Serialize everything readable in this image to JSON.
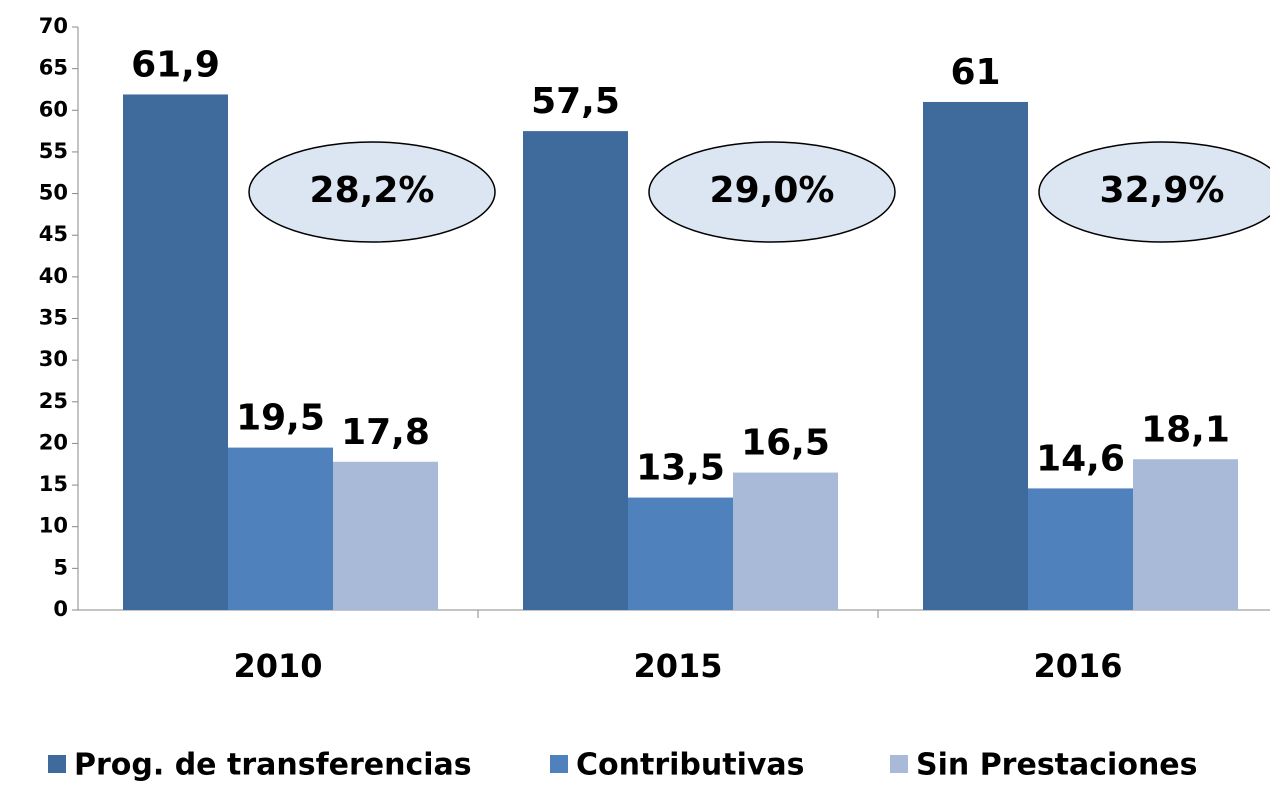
{
  "chart_data": {
    "type": "bar",
    "categories": [
      "2010",
      "2015",
      "2016"
    ],
    "series": [
      {
        "name": "Prog. de transferencias",
        "color": "#3f6b9c",
        "values": [
          61.9,
          57.5,
          61
        ],
        "value_labels": [
          "61,9",
          "57,5",
          "61"
        ]
      },
      {
        "name": "Contributivas",
        "color": "#4f81bd",
        "values": [
          19.5,
          13.5,
          14.6
        ],
        "value_labels": [
          "19,5",
          "13,5",
          "14,6"
        ]
      },
      {
        "name": "Sin Prestaciones",
        "color": "#a9b9d8",
        "values": [
          17.8,
          16.5,
          18.1
        ],
        "value_labels": [
          "17,8",
          "16,5",
          "18,1"
        ]
      }
    ],
    "annotations": [
      "28,2%",
      "29,0%",
      "32,9%"
    ],
    "ylim": [
      0,
      70
    ],
    "yticks": [
      0,
      5,
      10,
      15,
      20,
      25,
      30,
      35,
      40,
      45,
      50,
      55,
      60,
      65,
      70
    ],
    "grid": false,
    "legend": "bottom"
  }
}
